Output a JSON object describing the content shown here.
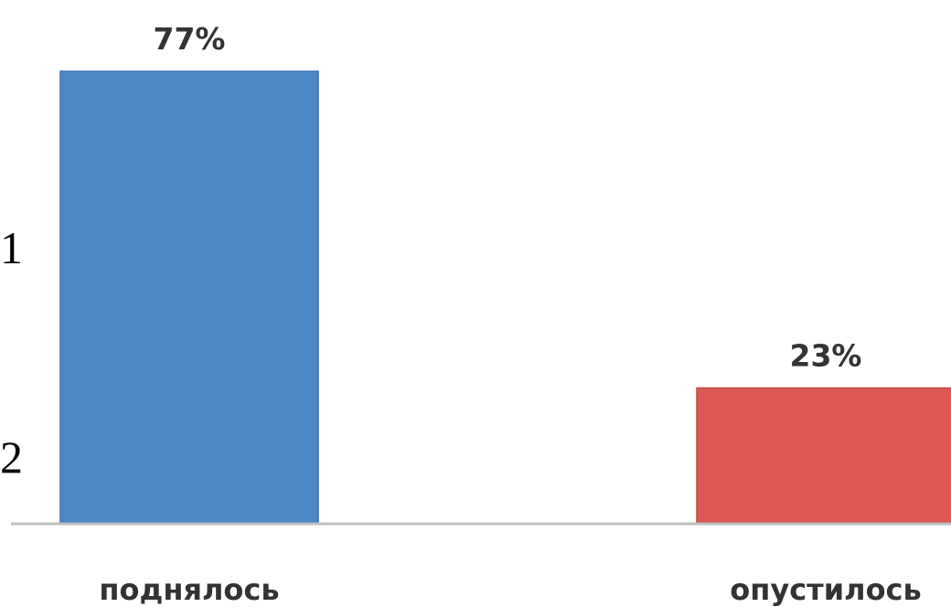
{
  "chart_data": {
    "type": "bar",
    "categories": [
      "поднялось",
      "опустилось"
    ],
    "values": [
      77,
      23
    ],
    "value_labels": [
      "77%",
      "23%"
    ],
    "colors": [
      "#4f88c6",
      "#dc5953"
    ],
    "ylim": [
      0,
      77
    ],
    "title": "",
    "xlabel": "",
    "ylabel": ""
  },
  "side_labels": [
    "1",
    "2"
  ]
}
